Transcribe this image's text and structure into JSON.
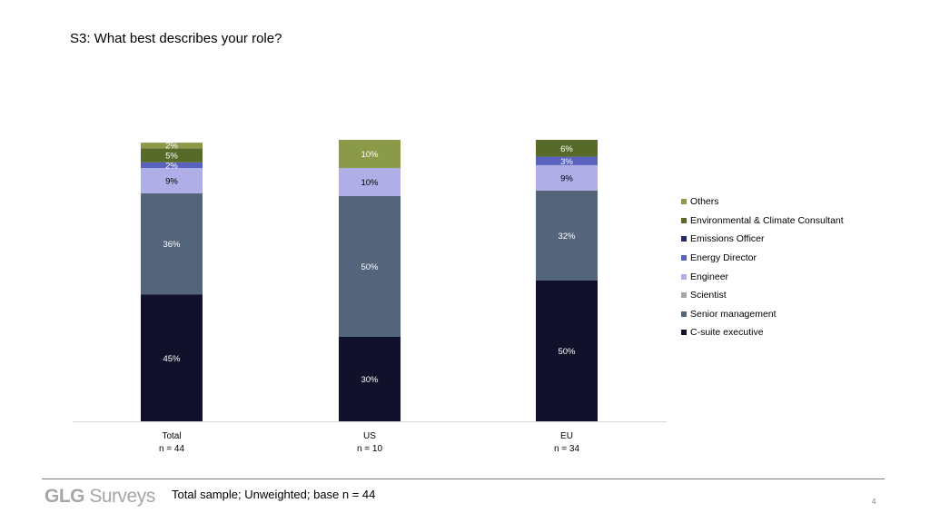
{
  "title": "S3: What best describes your role?",
  "footer": {
    "logo_bold": "GLG",
    "logo_light": "Surveys",
    "note": "Total sample; Unweighted; base n = 44",
    "page_number": "4"
  },
  "chart_data": {
    "type": "bar",
    "stacked": true,
    "value_unit": "%",
    "ylim": [
      0,
      100
    ],
    "grid": false,
    "legend_position": "right",
    "categories": [
      {
        "name": "Total",
        "n": "n = 44"
      },
      {
        "name": "US",
        "n": "n = 10"
      },
      {
        "name": "EU",
        "n": "n = 34"
      }
    ],
    "series": [
      {
        "name": "C-suite executive",
        "color": "#11112b",
        "label_color": "#ffffff",
        "values": [
          45,
          30,
          50
        ],
        "labels": [
          "45%",
          "30%",
          "50%"
        ]
      },
      {
        "name": "Senior management",
        "color": "#54657b",
        "label_color": "#ffffff",
        "values": [
          36,
          50,
          32
        ],
        "labels": [
          "36%",
          "50%",
          "32%"
        ]
      },
      {
        "name": "Scientist",
        "color": "#a5a5a5",
        "label_color": "#ffffff",
        "values": [
          0,
          0,
          0
        ],
        "labels": [
          "",
          "",
          ""
        ]
      },
      {
        "name": "Engineer",
        "color": "#afaee6",
        "label_color": "#000000",
        "values": [
          9,
          10,
          9
        ],
        "labels": [
          "9%",
          "10%",
          "9%"
        ]
      },
      {
        "name": "Energy Director",
        "color": "#5a62c0",
        "label_color": "#ffffff",
        "values": [
          2,
          0,
          3
        ],
        "labels": [
          "2%",
          "",
          "3%"
        ]
      },
      {
        "name": "Emissions Officer",
        "color": "#222a6b",
        "label_color": "#ffffff",
        "values": [
          0,
          0,
          0
        ],
        "labels": [
          "",
          "",
          ""
        ]
      },
      {
        "name": "Environmental & Climate Consultant",
        "color": "#586a2a",
        "label_color": "#ffffff",
        "values": [
          5,
          0,
          6
        ],
        "labels": [
          "5%",
          "",
          "6%"
        ]
      },
      {
        "name": "Others",
        "color": "#8a9a48",
        "label_color": "#ffffff",
        "values": [
          2,
          10,
          0
        ],
        "labels": [
          "2%",
          "10%",
          ""
        ]
      }
    ],
    "legend_order": [
      "Others",
      "Environmental & Climate Consultant",
      "Emissions Officer",
      "Energy Director",
      "Engineer",
      "Scientist",
      "Senior management",
      "C-suite executive"
    ]
  }
}
